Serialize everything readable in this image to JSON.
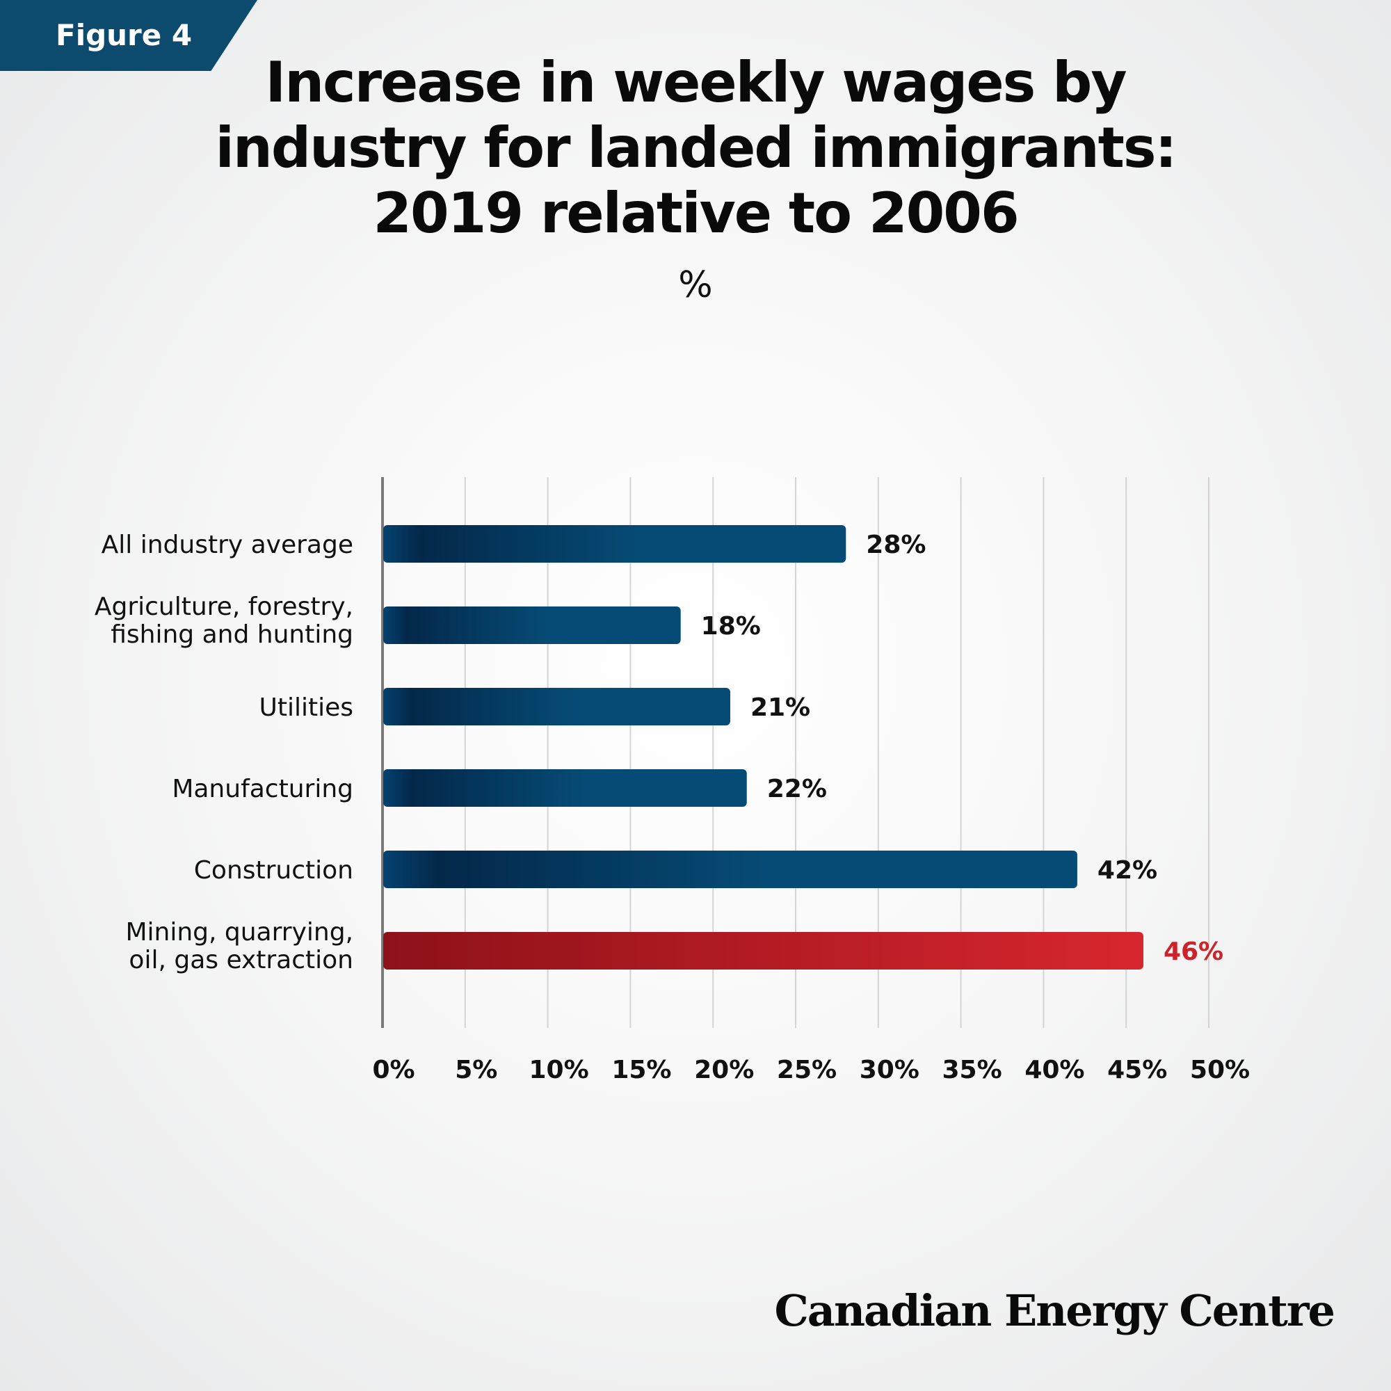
{
  "figure_label": "Figure 4",
  "title_lines": [
    "Increase in weekly wages by",
    "industry for landed immigrants:",
    "2019 relative to 2006"
  ],
  "unit_label": "%",
  "brand": "Canadian Energy Centre",
  "colors": {
    "bar_dark": "#03284a",
    "bar_light": "#064b75",
    "highlight_dark": "#8e1119",
    "highlight_light": "#d8262e",
    "highlight_text": "#cc2229",
    "axis": "#7a7a7a",
    "grid": "#d4d4d4"
  },
  "chart_data": {
    "type": "bar",
    "orientation": "horizontal",
    "categories": [
      [
        "All industry average"
      ],
      [
        "Agriculture, forestry,",
        "fishing and hunting"
      ],
      [
        "Utilities"
      ],
      [
        "Manufacturing"
      ],
      [
        "Construction"
      ],
      [
        "Mining, quarrying,",
        "oil, gas extraction"
      ]
    ],
    "values": [
      28,
      18,
      21,
      22,
      42,
      46
    ],
    "value_labels": [
      "28%",
      "18%",
      "21%",
      "22%",
      "42%",
      "46%"
    ],
    "highlight_index": 5,
    "xlim": [
      0,
      50
    ],
    "xticks": [
      0,
      5,
      10,
      15,
      20,
      25,
      30,
      35,
      40,
      45,
      50
    ],
    "xtick_labels": [
      "0%",
      "5%",
      "10%",
      "15%",
      "20%",
      "25%",
      "30%",
      "35%",
      "40%",
      "45%",
      "50%"
    ],
    "grid": true
  }
}
